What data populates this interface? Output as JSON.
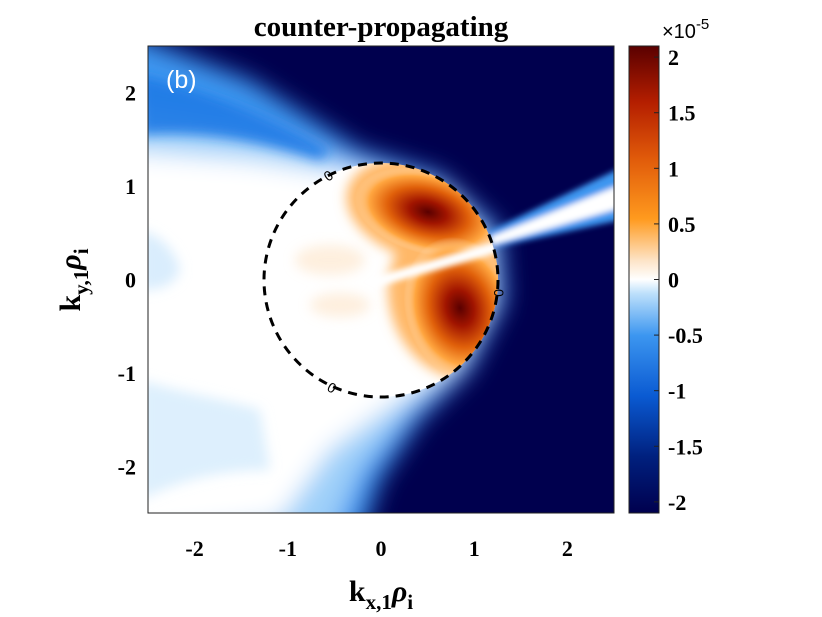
{
  "chart_data": {
    "type": "heatmap",
    "title": "counter-propagating",
    "panel_label": "(b)",
    "xlabel": {
      "base": "k",
      "sub": "x,1",
      "greek": "ρ",
      "greek_sub": "i"
    },
    "ylabel": {
      "base": "k",
      "sub": "y,1",
      "greek": "ρ",
      "greek_sub": "i"
    },
    "xlim": [
      -2.5,
      2.5
    ],
    "ylim": [
      -2.5,
      2.5
    ],
    "x_ticks": [
      -2,
      -1,
      0,
      1,
      2
    ],
    "x_tick_labels": [
      "-2",
      "-1",
      "0",
      "1",
      "2"
    ],
    "y_ticks": [
      -2,
      -1,
      0,
      1,
      2
    ],
    "y_tick_labels": [
      "-2",
      "-1",
      "0",
      "1",
      "2"
    ],
    "colorbar": {
      "range": [
        -2.1,
        2.1
      ],
      "multiplier_label": "×10",
      "multiplier_exponent": "-5",
      "ticks": [
        -2,
        -1.5,
        -1,
        -0.5,
        0,
        0.5,
        1,
        1.5,
        2
      ],
      "tick_labels": [
        "-2",
        "-1.5",
        "-1",
        "-0.5",
        "0",
        "0.5",
        "1",
        "1.5",
        "2"
      ],
      "colormap": "blue-white-red diverging"
    },
    "zero_contour": {
      "shape": "circle",
      "center": [
        0,
        0
      ],
      "radius": 1.25,
      "style": "dashed",
      "labels": [
        "0",
        "0",
        "0"
      ]
    },
    "features": [
      {
        "kind": "peak",
        "x": 0.65,
        "y": 0.75,
        "value": 2.1
      },
      {
        "kind": "peak",
        "x": 0.85,
        "y": -0.25,
        "value": 2.1
      },
      {
        "kind": "background",
        "region": "right side",
        "value": -2.1
      },
      {
        "kind": "background",
        "region": "left side",
        "value": 0
      }
    ]
  },
  "colors": {
    "dark_navy": "#00004e",
    "blue": "#0a5ad2",
    "light_blue": "#6ab8f6",
    "white": "#ffffff",
    "orange": "#ff9a1e",
    "red": "#c81e0a",
    "dark_red": "#5a0000"
  }
}
